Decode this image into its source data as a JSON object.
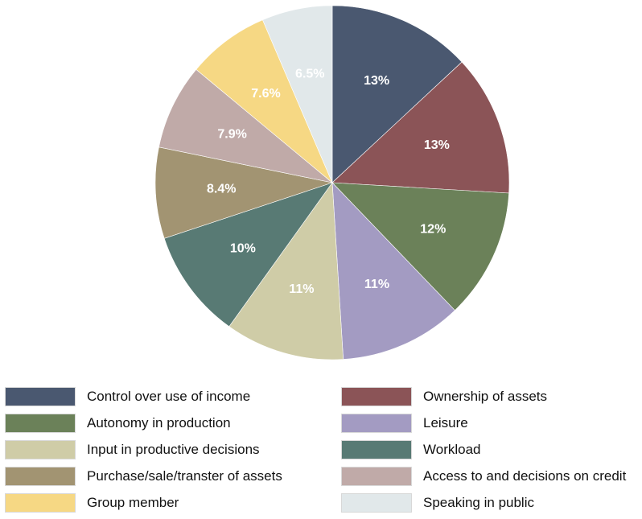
{
  "chart_data": {
    "type": "pie",
    "title": "",
    "slices": [
      {
        "name": "Control over use of income",
        "value": 13.2,
        "label": "13%",
        "color": "#4a5870"
      },
      {
        "name": "Ownership of assets",
        "value": 13.0,
        "label": "13%",
        "color": "#8b5457"
      },
      {
        "name": "Autonomy in production",
        "value": 12.0,
        "label": "12%",
        "color": "#6b8159"
      },
      {
        "name": "Leisure",
        "value": 11.3,
        "label": "11%",
        "color": "#a39bc2"
      },
      {
        "name": "Input in productive decisions",
        "value": 11.0,
        "label": "11%",
        "color": "#cfcca7"
      },
      {
        "name": "Workload",
        "value": 10.1,
        "label": "10%",
        "color": "#587a74"
      },
      {
        "name": "Purchase/sale/transter of assets",
        "value": 8.4,
        "label": "8.4%",
        "color": "#a29472"
      },
      {
        "name": "Access to and decisions on credit",
        "value": 7.9,
        "label": "7.9%",
        "color": "#c0aaa8"
      },
      {
        "name": "Group member",
        "value": 7.6,
        "label": "7.6%",
        "color": "#f6d884"
      },
      {
        "name": "Speaking in public",
        "value": 6.5,
        "label": "6.5%",
        "color": "#e1e8ea"
      }
    ],
    "legend_order": [
      "Control over use of income",
      "Ownership of assets",
      "Autonomy in production",
      "Leisure",
      "Input in productive decisions",
      "Workload",
      "Purchase/sale/transter of assets",
      "Access to and decisions on credit",
      "Group member",
      "Speaking in public"
    ],
    "start": "12 o'clock",
    "direction": "clockwise",
    "legend_position": "bottom",
    "legend_columns": 2
  }
}
